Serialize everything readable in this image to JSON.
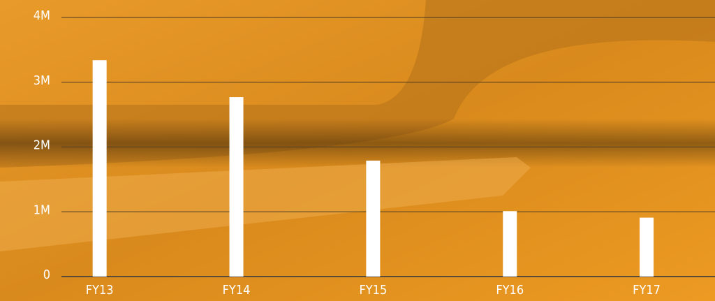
{
  "chart_data": {
    "type": "bar",
    "categories": [
      "FY13",
      "FY14",
      "FY15",
      "FY16",
      "FY17"
    ],
    "values": [
      3340000,
      2770000,
      1790000,
      1010000,
      910000
    ],
    "color": "#ffffff",
    "ylim": [
      0,
      4000000
    ],
    "yticks": [
      0,
      {
        "value": 1000000,
        "label": "1M"
      },
      {
        "value": 2000000,
        "label": "2M"
      },
      {
        "value": 3000000,
        "label": "3M"
      },
      {
        "value": 4000000,
        "label": "4M"
      }
    ],
    "grid": true
  }
}
